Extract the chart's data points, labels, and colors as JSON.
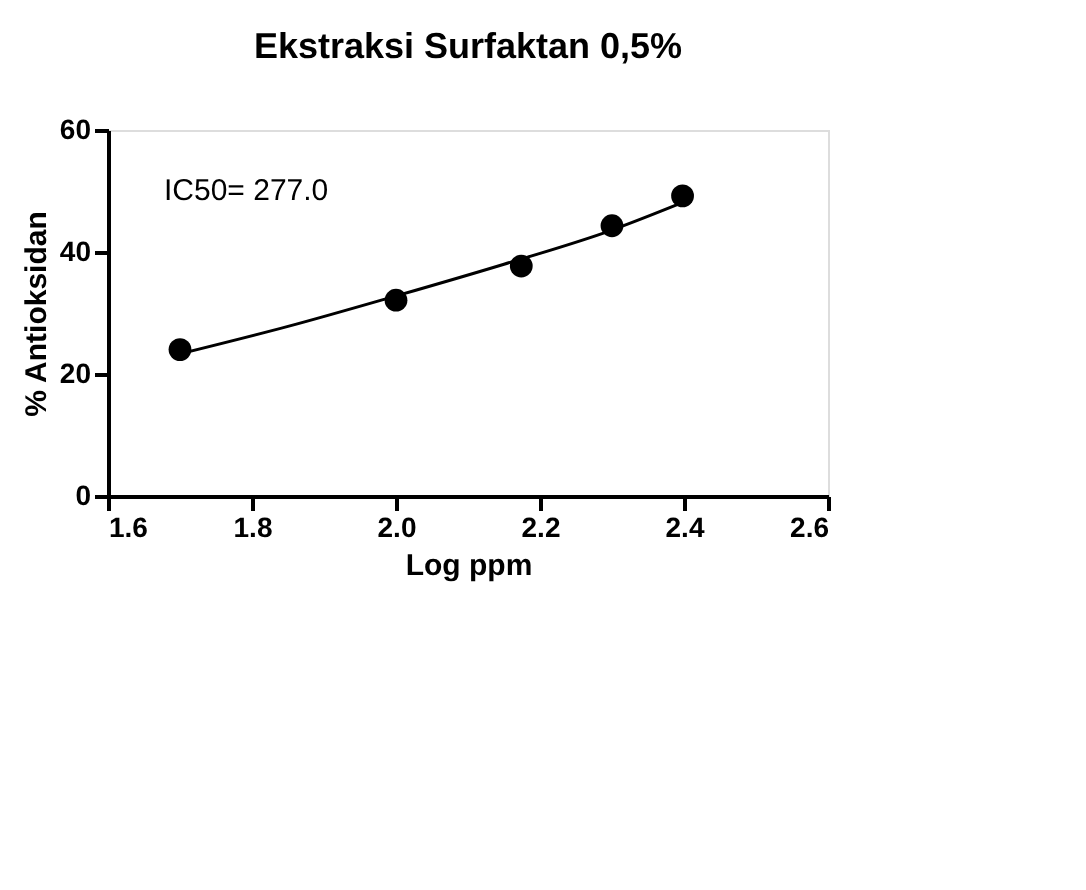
{
  "chart_data": {
    "type": "scatter",
    "title": "Ekstraksi Surfaktan 0,5%",
    "xlabel": "Log ppm",
    "ylabel": "% Antioksidan",
    "annotations": [
      "IC50= 277.0"
    ],
    "series": [
      {
        "color": "#000000",
        "marker": "circle",
        "x": [
          1.7,
          2.0,
          2.174,
          2.3,
          2.398
        ],
        "values": [
          24.0,
          32.1,
          37.7,
          44.3,
          49.2
        ]
      },
      {
        "type": "line",
        "color": "#000000",
        "marker": "none",
        "line_style": "solid",
        "x": [
          1.7,
          1.85,
          2.0,
          2.15,
          2.3,
          2.4
        ],
        "values": [
          23.3,
          27.8,
          32.8,
          38.0,
          43.6,
          48.2
        ]
      }
    ],
    "xlim": [
      1.6,
      2.6
    ],
    "xticks": [
      {
        "value": 1.6,
        "label": "1.6"
      },
      {
        "value": 1.8,
        "label": "1.8"
      },
      {
        "value": 2.0,
        "label": "2.0"
      },
      {
        "value": 2.2,
        "label": "2.2"
      },
      {
        "value": 2.4,
        "label": "2.4"
      },
      {
        "value": 2.6,
        "label": "2.6"
      }
    ],
    "ylim": [
      0,
      60
    ],
    "yticks": [
      0,
      20,
      40,
      60
    ],
    "grid": false
  }
}
